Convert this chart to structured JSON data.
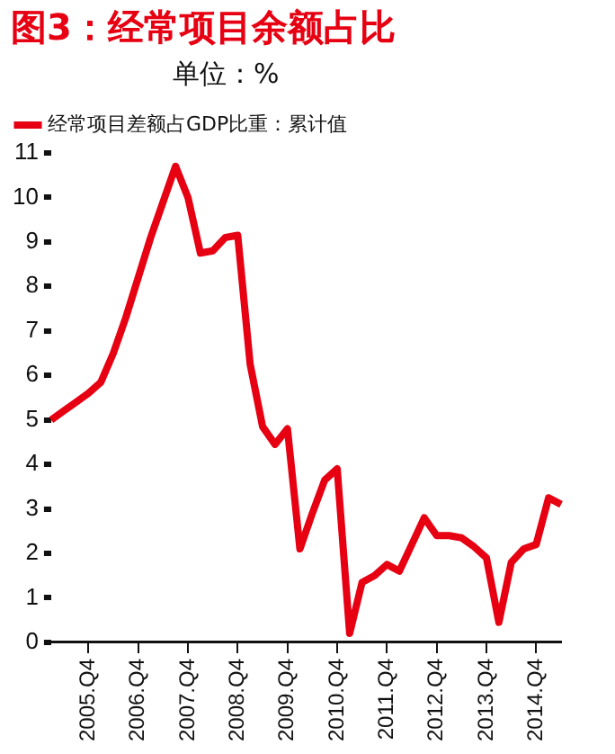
{
  "chart_data": {
    "type": "line",
    "title": "图3：经常项目余额占比",
    "subtitle": "单位：%",
    "categories": [
      null,
      null,
      null,
      "2005.Q4",
      null,
      null,
      null,
      "2006.Q4",
      null,
      null,
      null,
      "2007.Q4",
      null,
      null,
      null,
      "2008.Q4",
      null,
      null,
      null,
      "2009.Q4",
      null,
      null,
      null,
      "2010.Q4",
      null,
      null,
      null,
      "2011.Q4",
      null,
      null,
      null,
      "2012.Q4",
      null,
      null,
      null,
      "2013.Q4",
      null,
      null,
      null,
      "2014.Q4",
      null,
      null
    ],
    "series": [
      {
        "name": "经常项目差额占GDP比重：累计值",
        "color": "#e60012",
        "values": [
          5.0,
          5.2,
          5.4,
          5.6,
          5.85,
          6.5,
          7.3,
          8.2,
          9.1,
          9.9,
          10.7,
          10.0,
          8.75,
          8.8,
          9.1,
          9.15,
          6.25,
          4.85,
          4.45,
          4.8,
          2.1,
          2.9,
          3.65,
          3.9,
          0.2,
          1.35,
          1.5,
          1.75,
          1.6,
          2.2,
          2.8,
          2.4,
          2.4,
          2.35,
          2.15,
          1.9,
          0.45,
          1.8,
          2.1,
          2.2,
          3.25,
          3.1
        ]
      }
    ],
    "ylim": [
      0,
      11
    ],
    "yticks": [
      0,
      1,
      2,
      3,
      4,
      5,
      6,
      7,
      8,
      9,
      10,
      11
    ],
    "grid": false,
    "legend": "top left",
    "marker": "none",
    "line_style": "solid"
  }
}
